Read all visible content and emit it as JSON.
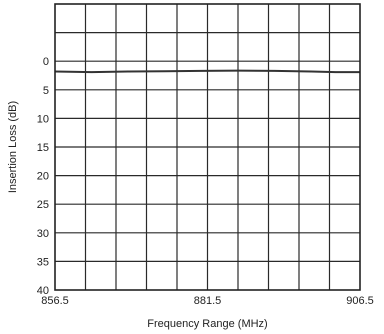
{
  "chart_data": {
    "type": "line",
    "title": "",
    "xlabel": "Frequency Range (MHz)",
    "ylabel": "Insertion Loss (dB)",
    "xlim": [
      856.5,
      906.5
    ],
    "ylim": [
      -10,
      40
    ],
    "y_inverted": true,
    "x_tick_labels": [
      "856.5",
      "881.5",
      "906.5"
    ],
    "x_tick_values": [
      856.5,
      881.5,
      906.5
    ],
    "y_tick_values": [
      0,
      5,
      10,
      15,
      20,
      25,
      30,
      35,
      40
    ],
    "y_tick_labels": [
      "0",
      "5",
      "10",
      "15",
      "20",
      "25",
      "30",
      "35",
      "40"
    ],
    "x_grid_divisions": 10,
    "y_grid_step": 5,
    "grid": true,
    "legend": "none",
    "series": [
      {
        "color": "#333333",
        "x": [
          856.5,
          862.5,
          868.5,
          874.5,
          880.5,
          886.5,
          892.5,
          898.5,
          902.5,
          906.5
        ],
        "y": [
          1.8,
          1.9,
          1.8,
          1.75,
          1.7,
          1.65,
          1.7,
          1.8,
          1.9,
          1.9
        ]
      }
    ]
  }
}
